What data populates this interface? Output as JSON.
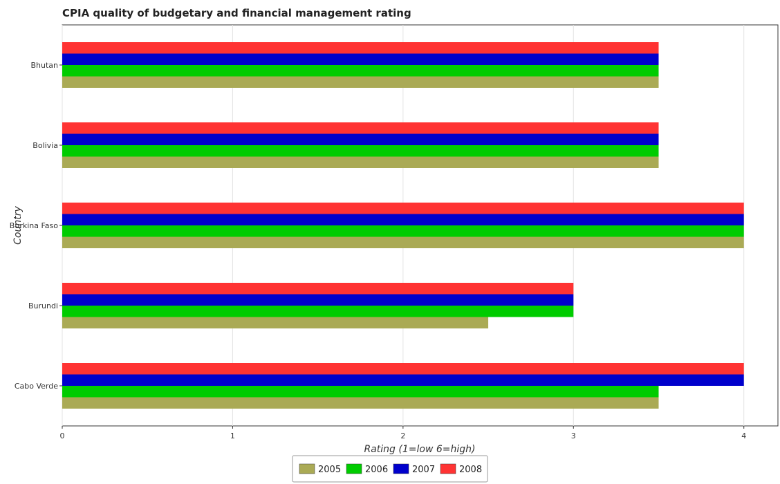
{
  "chart_data": {
    "type": "bar",
    "orientation": "horizontal",
    "title": "CPIA quality of budgetary and financial management rating",
    "xlabel": "Rating (1=low 6=high)",
    "ylabel": "Country",
    "xlim": [
      0,
      4.2
    ],
    "xticks": [
      0,
      1,
      2,
      3,
      4
    ],
    "categories": [
      "Bhutan",
      "Bolivia",
      "Burkina Faso",
      "Burundi",
      "Cabo Verde"
    ],
    "series": [
      {
        "name": "2005",
        "color": "#aaaa55",
        "values": [
          3.5,
          3.5,
          4.0,
          2.5,
          3.5
        ]
      },
      {
        "name": "2006",
        "color": "#00cc00",
        "values": [
          3.5,
          3.5,
          4.0,
          3.0,
          3.5
        ]
      },
      {
        "name": "2007",
        "color": "#0000cc",
        "values": [
          3.5,
          3.5,
          4.0,
          3.0,
          4.0
        ]
      },
      {
        "name": "2008",
        "color": "#ff3333",
        "values": [
          3.5,
          3.5,
          4.0,
          3.0,
          4.0
        ]
      }
    ],
    "grid": true,
    "legend": "bottom-center"
  }
}
